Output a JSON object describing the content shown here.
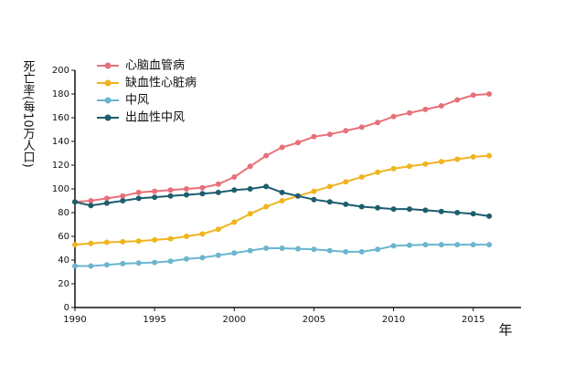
{
  "chart_data": {
    "type": "line",
    "y_label": "死亡率(每10万人口)",
    "x_label": "年",
    "x": [
      1990,
      1991,
      1992,
      1993,
      1994,
      1995,
      1996,
      1997,
      1998,
      1999,
      2000,
      2001,
      2002,
      2003,
      2004,
      2005,
      2006,
      2007,
      2008,
      2009,
      2010,
      2011,
      2012,
      2013,
      2014,
      2015,
      2016
    ],
    "series": [
      {
        "name": "心脑血管病",
        "color": "#e8707a",
        "values": [
          89,
          90,
          92,
          94,
          97,
          98,
          99,
          100,
          101,
          104,
          110,
          119,
          128,
          135,
          139,
          144,
          146,
          149,
          152,
          156,
          161,
          164,
          167,
          170,
          175,
          179,
          180
        ]
      },
      {
        "name": "缺血性心脏病",
        "color": "#f0b41e",
        "values": [
          53,
          54,
          55,
          55.5,
          56,
          57,
          58,
          60,
          62,
          66,
          72,
          79,
          85,
          90,
          94,
          98,
          102,
          106,
          110,
          114,
          117,
          119,
          121,
          123,
          125,
          127,
          128
        ]
      },
      {
        "name": "中风",
        "color": "#6bb5cf",
        "values": [
          35,
          35,
          36,
          37,
          37.5,
          38,
          39,
          41,
          42,
          44,
          46,
          48,
          50,
          50,
          49.5,
          49,
          48,
          47,
          47,
          49,
          52,
          52.5,
          53,
          53,
          53,
          53,
          53
        ]
      },
      {
        "name": "出血性中风",
        "color": "#1d5d6e",
        "values": [
          89,
          86,
          88,
          90,
          92,
          93,
          94,
          95,
          96,
          97,
          99,
          100,
          102,
          97,
          94,
          91,
          89,
          87,
          85,
          84,
          83,
          83,
          82,
          81,
          80,
          79,
          77
        ]
      }
    ],
    "xlim": [
      1990,
      2018
    ],
    "xticks": [
      1990,
      1995,
      2000,
      2005,
      2010,
      2015
    ],
    "ylim": [
      0,
      200
    ],
    "yticks": [
      0,
      20,
      40,
      60,
      80,
      100,
      120,
      140,
      160,
      180,
      200
    ],
    "legend": "upper left"
  }
}
